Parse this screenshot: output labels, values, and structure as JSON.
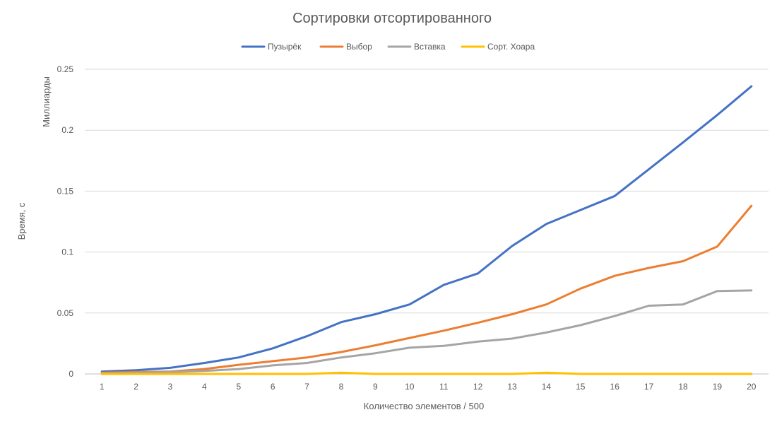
{
  "chart_data": {
    "type": "line",
    "title": "Сортировки отсортированного",
    "xlabel": "Количество элементов / 500",
    "ylabel": "Время, с",
    "units_label": "Миллиарды",
    "categories": [
      "1",
      "2",
      "3",
      "4",
      "5",
      "6",
      "7",
      "8",
      "9",
      "10",
      "11",
      "12",
      "13",
      "14",
      "15",
      "16",
      "17",
      "18",
      "19",
      "20"
    ],
    "y_ticks": [
      "0",
      "0.05",
      "0.1",
      "0.15",
      "0.2",
      "0.25"
    ],
    "ylim": [
      0,
      0.25
    ],
    "grid": true,
    "legend_position": "top",
    "series": [
      {
        "name": "Пузырёк",
        "color": "#4472C4",
        "values": [
          0.002,
          0.003,
          0.005,
          0.009,
          0.0135,
          0.021,
          0.031,
          0.0425,
          0.049,
          0.057,
          0.073,
          0.0825,
          0.105,
          0.123,
          0.1345,
          0.146,
          0.168,
          0.19,
          0.2125,
          0.236
        ]
      },
      {
        "name": "Выбор",
        "color": "#ED7D31",
        "values": [
          0.001,
          0.0015,
          0.002,
          0.004,
          0.0075,
          0.0105,
          0.0135,
          0.018,
          0.0235,
          0.0295,
          0.0355,
          0.042,
          0.049,
          0.057,
          0.07,
          0.0805,
          0.087,
          0.0925,
          0.1045,
          0.138
        ]
      },
      {
        "name": "Вставка",
        "color": "#A5A5A5",
        "values": [
          0.0005,
          0.001,
          0.0015,
          0.0025,
          0.004,
          0.007,
          0.009,
          0.0135,
          0.017,
          0.0215,
          0.023,
          0.0265,
          0.029,
          0.034,
          0.04,
          0.0475,
          0.056,
          0.057,
          0.068,
          0.0685
        ]
      },
      {
        "name": "Сорт. Хоара",
        "color": "#FFC000",
        "values": [
          0,
          0,
          0,
          0,
          0,
          0,
          0,
          0.001,
          0,
          0,
          0,
          0,
          0,
          0.001,
          0,
          0,
          0,
          0,
          0,
          0
        ]
      }
    ]
  }
}
